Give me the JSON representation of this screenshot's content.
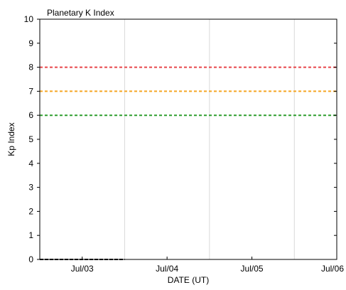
{
  "chart_data": {
    "type": "line",
    "title": "Planetary K Index",
    "xlabel": "DATE (UT)",
    "ylabel": "Kp Index",
    "ylim": [
      0,
      10
    ],
    "yticks": [
      0,
      1,
      2,
      3,
      4,
      5,
      6,
      7,
      8,
      9,
      10
    ],
    "x_range": [
      "2026-07-02 12:00",
      "2026-07-06 00:00"
    ],
    "xticks": [
      {
        "date": "2026-07-03",
        "label": "Jul/03"
      },
      {
        "date": "2026-07-04",
        "label": "Jul/04"
      },
      {
        "date": "2026-07-05",
        "label": "Jul/05"
      },
      {
        "date": "2026-07-06",
        "label": "Jul/06"
      }
    ],
    "grid": true,
    "vertical_gridlines": [
      "2026-07-03 12:00",
      "2026-07-04 12:00",
      "2026-07-05 12:00"
    ],
    "thresholds": [
      {
        "value": 8,
        "color": "#e8464a"
      },
      {
        "value": 7,
        "color": "#f5a623"
      },
      {
        "value": 6,
        "color": "#2e9e2e"
      }
    ],
    "series": [
      {
        "color": "#000000",
        "x": [
          "2026-07-02 12:00",
          "2026-07-03 12:00"
        ],
        "y": [
          0,
          0
        ]
      }
    ]
  }
}
